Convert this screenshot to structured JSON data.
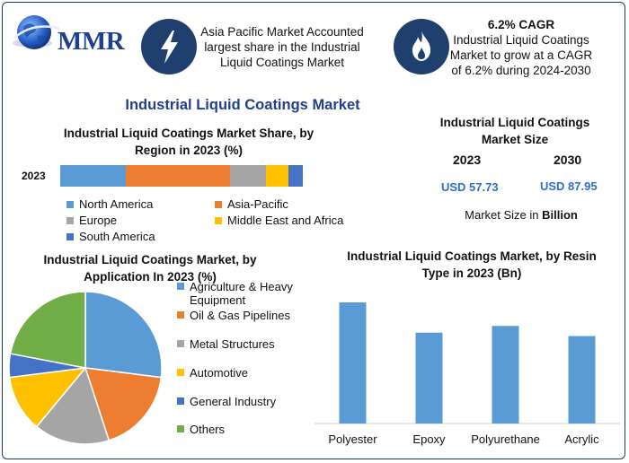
{
  "logo": {
    "text": "MMR",
    "icon": "globe-icon"
  },
  "info_left": {
    "icon": "lightning-icon",
    "text": "Asia Pacific Market Accounted largest share in the Industrial Liquid Coatings Market"
  },
  "info_right": {
    "icon": "flame-icon",
    "heading": "6.2% CAGR",
    "text": "Industrial Liquid Coatings Market to grow at a CAGR of 6.2% during 2024-2030"
  },
  "main_title": "Industrial Liquid Coatings Market",
  "market_size": {
    "title": "Industrial Liquid Coatings Market Size",
    "years": [
      "2023",
      "2030"
    ],
    "values": [
      "USD 57.73",
      "USD 87.95"
    ],
    "note_prefix": "Market Size in ",
    "note_unit": "Billion"
  },
  "colors": {
    "blue": "#5b9bd5",
    "orange": "#ed7d31",
    "gray": "#a5a5a5",
    "yellow": "#ffc000",
    "darkblue": "#4472c4",
    "green": "#70ad47",
    "title_blue": "#1f3f8f",
    "value_blue": "#2f6fc8"
  },
  "chart_data": [
    {
      "type": "bar",
      "orientation": "horizontal-stacked",
      "title": "Industrial Liquid Coatings Market Share, by Region in 2023 (%)",
      "categories": [
        "2023"
      ],
      "series": [
        {
          "name": "North America",
          "values": [
            27
          ],
          "color": "#5b9bd5"
        },
        {
          "name": "Asia-Pacific",
          "values": [
            43
          ],
          "color": "#ed7d31"
        },
        {
          "name": "Europe",
          "values": [
            15
          ],
          "color": "#a5a5a5"
        },
        {
          "name": "Middle East and Africa",
          "values": [
            9
          ],
          "color": "#ffc000"
        },
        {
          "name": "South America",
          "values": [
            6
          ],
          "color": "#4472c4"
        }
      ],
      "legend": "bottom"
    },
    {
      "type": "pie",
      "title": "Industrial Liquid Coatings Market, by Application In 2023 (%)",
      "labels": [
        "Agriculture & Heavy Equipment",
        "Oil & Gas Pipelines",
        "Metal Structures",
        "Automotive",
        "General Industry",
        "Others"
      ],
      "values": [
        27,
        18,
        16,
        12,
        5,
        22
      ],
      "colors": [
        "#5b9bd5",
        "#ed7d31",
        "#a5a5a5",
        "#ffc000",
        "#4472c4",
        "#70ad47"
      ],
      "legend": "right"
    },
    {
      "type": "bar",
      "title": "Industrial Liquid Coatings Market, by Resin Type in 2023 (Bn)",
      "categories": [
        "Polyester",
        "Epoxy",
        "Polyurethane",
        "Acrylic"
      ],
      "values": [
        18,
        13.5,
        14.5,
        13
      ],
      "ylim": [
        0,
        20
      ],
      "color": "#5b9bd5",
      "grid": false
    }
  ]
}
